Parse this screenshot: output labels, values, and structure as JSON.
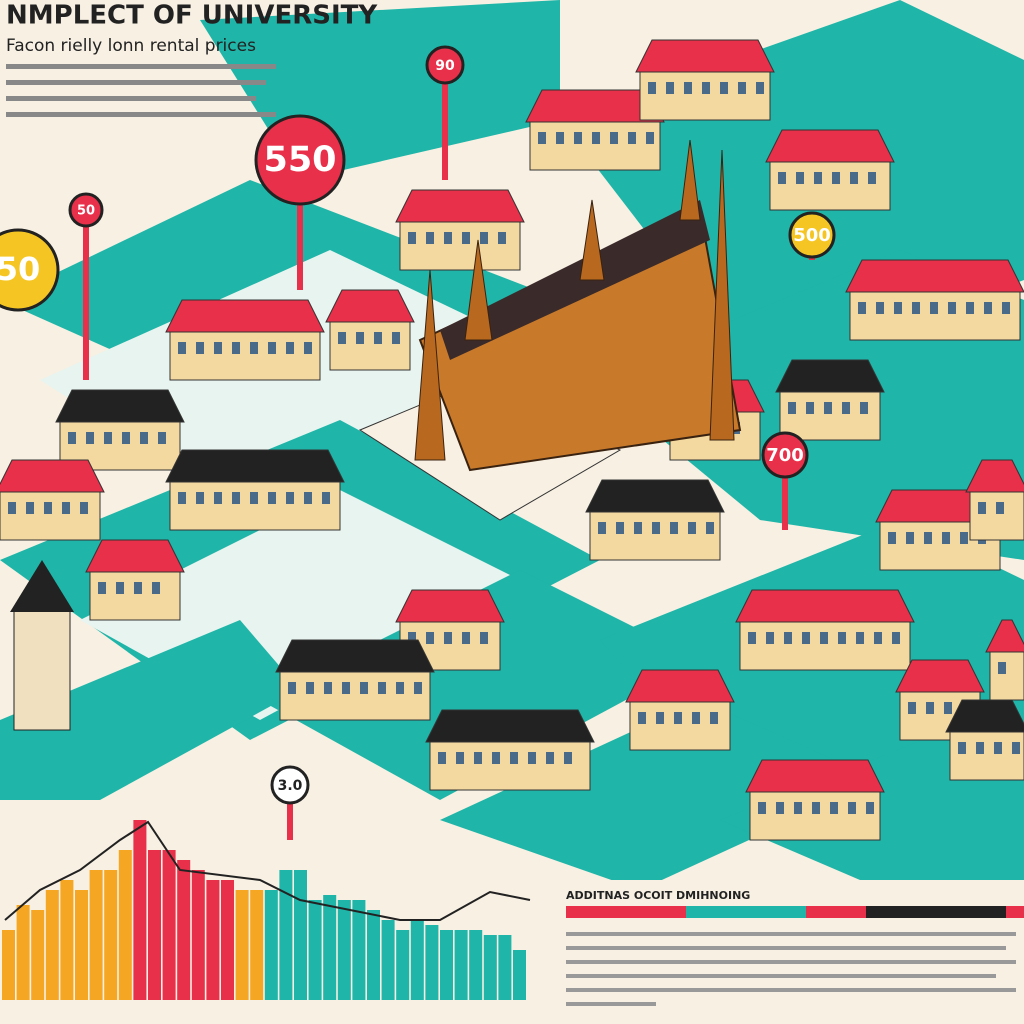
{
  "header": {
    "title": "NMPLECT OF UNIVERSITY",
    "subtitle": "Facon rielly lonn rental prices"
  },
  "pins": [
    {
      "label": "550"
    },
    {
      "label": "50"
    },
    {
      "label": "90"
    },
    {
      "label": "500"
    },
    {
      "label": "700"
    },
    {
      "label": "3.0"
    },
    {
      "label": "50"
    }
  ],
  "bar_chart": {
    "type": "bar",
    "ylim": [
      0,
      200
    ],
    "values": [
      70,
      95,
      90,
      110,
      120,
      110,
      130,
      130,
      150,
      180,
      150,
      150,
      140,
      130,
      120,
      120,
      110,
      110,
      110,
      130,
      130,
      100,
      105,
      100,
      100,
      90,
      80,
      70,
      80,
      75,
      70,
      70,
      70,
      65,
      65,
      50
    ],
    "colors": [
      "#f5a623",
      "#f5a623",
      "#f5a623",
      "#f5a623",
      "#f5a623",
      "#f5a623",
      "#f5a623",
      "#f5a623",
      "#f5a623",
      "#e8304a",
      "#e8304a",
      "#e8304a",
      "#e8304a",
      "#e8304a",
      "#e8304a",
      "#e8304a",
      "#f5a623",
      "#f5a623",
      "#1fb5a8",
      "#1fb5a8",
      "#1fb5a8",
      "#1fb5a8",
      "#1fb5a8",
      "#1fb5a8",
      "#1fb5a8",
      "#1fb5a8",
      "#1fb5a8",
      "#1fb5a8",
      "#1fb5a8",
      "#1fb5a8",
      "#1fb5a8",
      "#1fb5a8",
      "#1fb5a8",
      "#1fb5a8",
      "#1fb5a8",
      "#1fb5a8"
    ]
  },
  "panel": {
    "title": "ADDITNAS OCOIT DMIHNOING"
  }
}
